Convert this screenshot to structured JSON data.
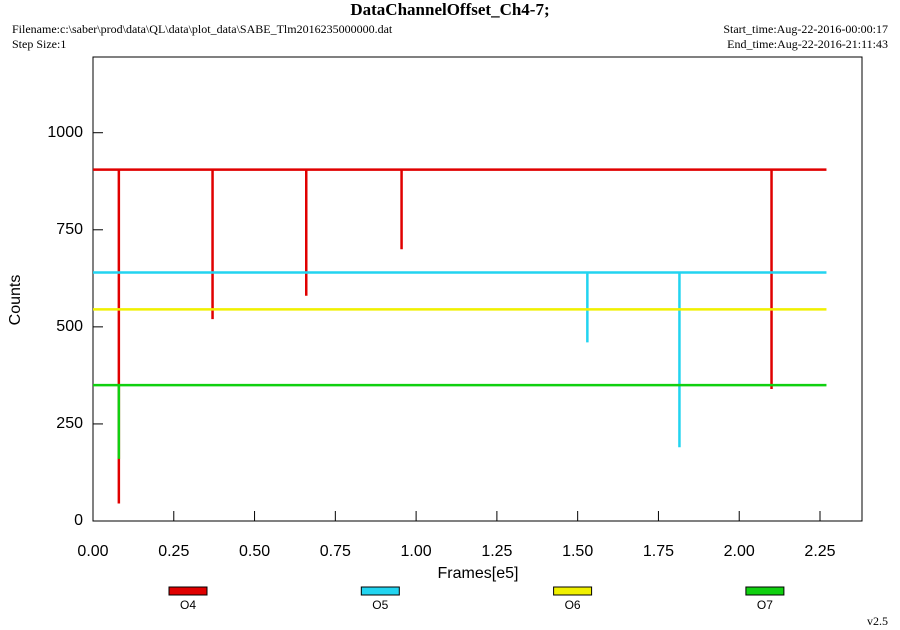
{
  "chart_data": {
    "type": "line",
    "title": "DataChannelOffset_Ch4-7;",
    "filename": "Filename:c:\\saber\\prod\\data\\QL\\data\\plot_data\\SABE_Tlm2016235000000.dat",
    "step_size": "Step Size:1",
    "start_time": "Start_time:Aug-22-2016-00:00:17",
    "end_time": "End_time:Aug-22-2016-21:11:43",
    "version": "v2.5",
    "xlabel": "Frames[e5]",
    "ylabel": "Counts",
    "xlim": [
      0,
      2.38
    ],
    "ylim": [
      0,
      1195
    ],
    "xticks": [
      {
        "value": 0,
        "label": "0.00"
      },
      {
        "value": 0.25,
        "label": "0.25"
      },
      {
        "value": 0.5,
        "label": "0.50"
      },
      {
        "value": 0.75,
        "label": "0.75"
      },
      {
        "value": 1,
        "label": "1.00"
      },
      {
        "value": 1.25,
        "label": "1.25"
      },
      {
        "value": 1.5,
        "label": "1.50"
      },
      {
        "value": 1.75,
        "label": "1.75"
      },
      {
        "value": 2,
        "label": "2.00"
      },
      {
        "value": 2.25,
        "label": "2.25"
      }
    ],
    "yticks": [
      0,
      250,
      500,
      750,
      1000
    ],
    "series": [
      {
        "name": "O4",
        "color": "#e00000",
        "x": [
          0,
          0.08,
          0.08,
          0.08,
          0.37,
          0.37,
          0.37,
          0.66,
          0.66,
          0.66,
          0.955,
          0.955,
          0.955,
          2.1,
          2.1,
          2.1,
          2.27
        ],
        "values": [
          905,
          905,
          45,
          905,
          905,
          520,
          905,
          905,
          580,
          905,
          905,
          700,
          905,
          905,
          340,
          905,
          905
        ]
      },
      {
        "name": "O5",
        "color": "#22d4f0",
        "x": [
          0,
          1.53,
          1.53,
          1.53,
          1.815,
          1.815,
          1.815,
          2.27
        ],
        "values": [
          640,
          640,
          460,
          640,
          640,
          190,
          640,
          640
        ]
      },
      {
        "name": "O6",
        "color": "#f0f000",
        "x": [
          0,
          2.27
        ],
        "values": [
          545,
          545
        ]
      },
      {
        "name": "O7",
        "color": "#10d010",
        "x": [
          0,
          0.08,
          0.08,
          0.08,
          2.27
        ],
        "values": [
          350,
          350,
          160,
          350,
          350
        ]
      }
    ]
  }
}
